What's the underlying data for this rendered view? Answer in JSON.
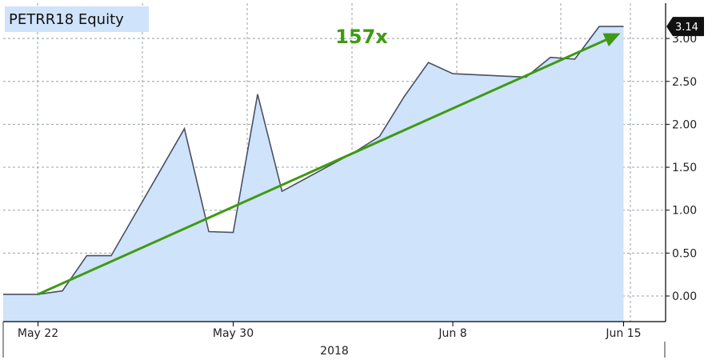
{
  "chart_data": {
    "type": "area",
    "title": "PETRR18 Equity",
    "x_tick_labels": [
      "May 22",
      "May 30",
      "Jun 8",
      "Jun 15"
    ],
    "x_tick_dates": [
      "2018-05-22",
      "2018-05-30",
      "2018-06-08",
      "2018-06-15"
    ],
    "xlabel": "2018",
    "x": [
      "2018-05-21",
      "2018-05-22",
      "2018-05-23",
      "2018-05-24",
      "2018-05-25",
      "2018-05-28",
      "2018-05-29",
      "2018-05-30",
      "2018-05-31",
      "2018-06-01",
      "2018-06-04",
      "2018-06-05",
      "2018-06-06",
      "2018-06-07",
      "2018-06-08",
      "2018-06-11",
      "2018-06-12",
      "2018-06-13",
      "2018-06-14",
      "2018-06-15"
    ],
    "values": [
      0.02,
      0.02,
      0.06,
      0.47,
      0.47,
      1.95,
      0.75,
      0.74,
      2.35,
      1.22,
      1.68,
      1.86,
      2.32,
      2.72,
      2.59,
      2.55,
      2.78,
      2.76,
      3.14,
      3.14
    ],
    "y_ticks": [
      0.0,
      0.5,
      1.0,
      1.5,
      2.0,
      2.5,
      3.0
    ],
    "y_tick_labels": [
      "0.00",
      "0.50",
      "1.00",
      "1.50",
      "2.00",
      "2.50",
      "3.00"
    ],
    "ylim": [
      -0.3,
      3.4
    ],
    "last_value_label": "3.14",
    "annotation": "157x",
    "trend_start": 0.02,
    "trend_end": 3.06,
    "grid": true,
    "colors": {
      "fill": "#cfe3fa",
      "line": "#4a5063",
      "trend": "#3f9a12",
      "annotation": "#3f9a12",
      "title_bg": "#cfe3fa",
      "last_badge": "#111111",
      "grid": "#9aa0a8"
    }
  }
}
